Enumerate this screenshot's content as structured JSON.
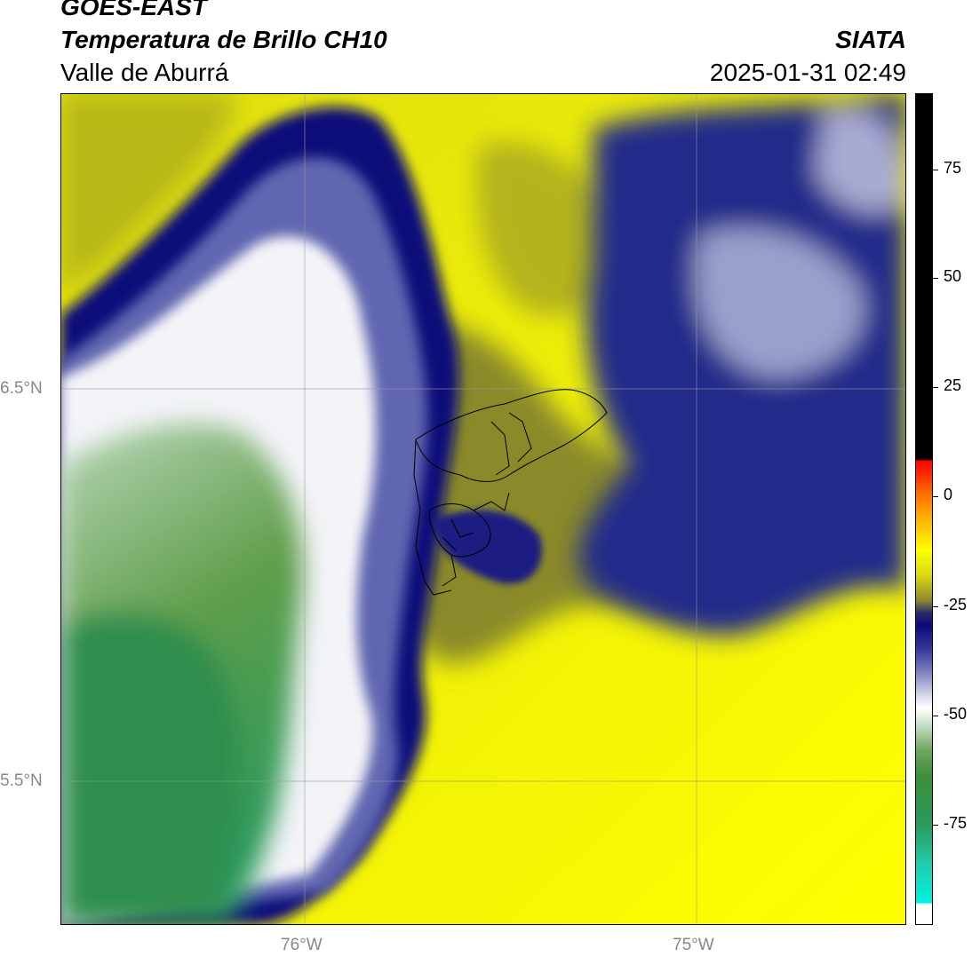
{
  "header": {
    "satellite": "GOES-EAST",
    "product": "Temperatura de Brillo CH10",
    "region": "Valle de Aburrá",
    "organization": "SIATA",
    "timestamp": "2025-01-31 02:49"
  },
  "map": {
    "lat_labels": [
      {
        "label": "6.5°N",
        "value": 6.5
      },
      {
        "label": "5.5°N",
        "value": 5.5
      }
    ],
    "lon_labels": [
      {
        "label": "76°W",
        "value": -76.0
      },
      {
        "label": "75°W",
        "value": -75.0
      }
    ],
    "colors": {
      "cold_green": "#2a9a5a",
      "white": "#ffffff",
      "navy": "#0c0c80",
      "olive": "#7a7a28",
      "yellow": "#ffff00",
      "black": "#000000"
    }
  },
  "colorbar": {
    "ticks": [
      {
        "label": "75",
        "value": 75
      },
      {
        "label": "50",
        "value": 50
      },
      {
        "label": "25",
        "value": 25
      },
      {
        "label": "0",
        "value": 0
      },
      {
        "label": "-25",
        "value": -25
      },
      {
        "label": "-50",
        "value": -50
      },
      {
        "label": "-75",
        "value": -75
      }
    ],
    "min": -94,
    "max": 91
  }
}
